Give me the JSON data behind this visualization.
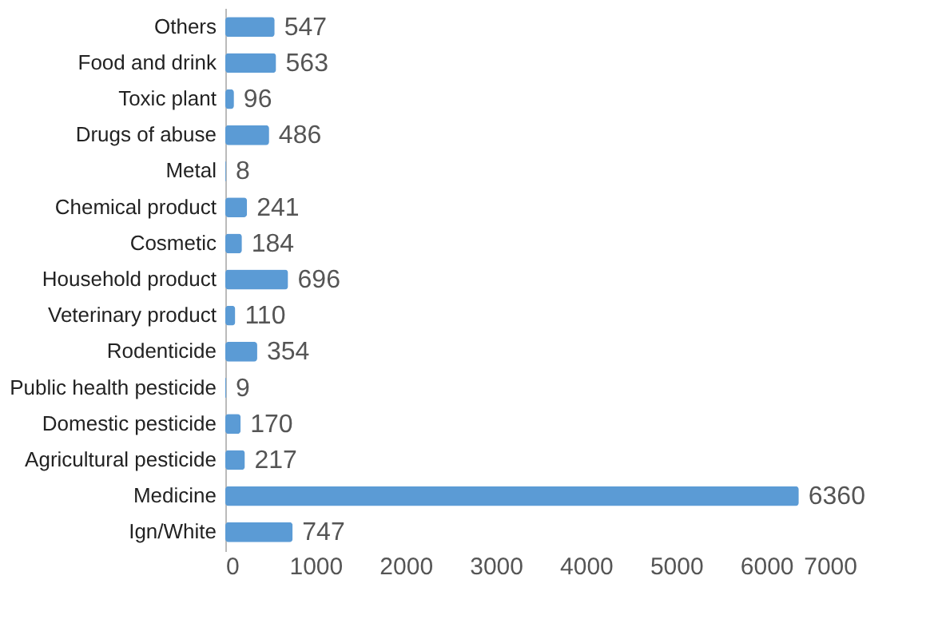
{
  "chart_data": {
    "type": "bar",
    "orientation": "horizontal",
    "categories": [
      "Others",
      "Food and drink",
      "Toxic plant",
      "Drugs of abuse",
      "Metal",
      "Chemical product",
      "Cosmetic",
      "Household product",
      "Veterinary product",
      "Rodenticide",
      "Public health pesticide",
      "Domestic pesticide",
      "Agricultural pesticide",
      "Medicine",
      "Ign/White"
    ],
    "values": [
      547,
      563,
      96,
      486,
      8,
      241,
      184,
      696,
      110,
      354,
      9,
      170,
      217,
      6360,
      747
    ],
    "color": "#5b9bd5",
    "xlim": [
      0,
      7000
    ],
    "xticks": [
      0,
      1000,
      2000,
      3000,
      4000,
      5000,
      6000,
      7000
    ],
    "grid": false,
    "data_labels": true
  }
}
